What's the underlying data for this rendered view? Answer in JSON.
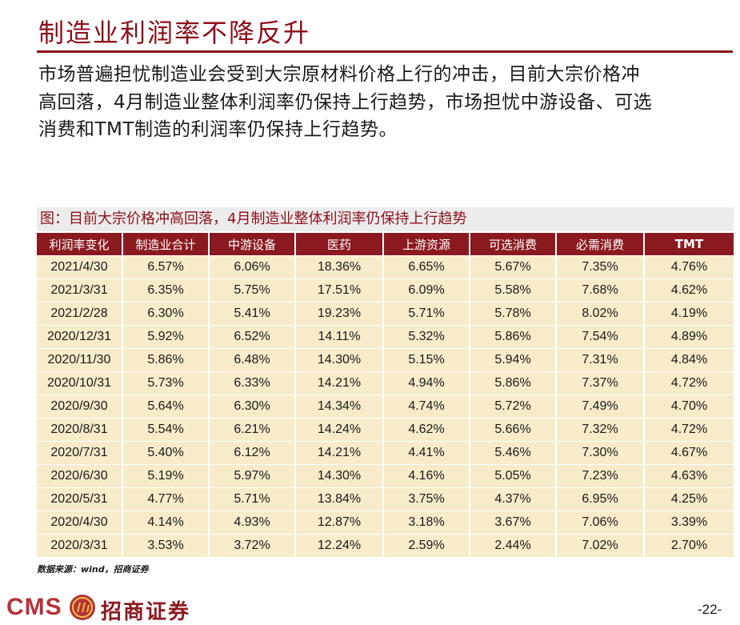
{
  "slide_title": "制造业利润率不降反升",
  "intro_lines": [
    "市场普遍担忧制造业会受到大宗原材料价格上行的冲击，目前大宗价格冲",
    "高回落，4月制造业整体利润率仍保持上行趋势，市场担忧中游设备、可选",
    "消费和TMT制造的利润率仍保持上行趋势。"
  ],
  "figure_caption": "图：目前大宗价格冲高回落，4月制造业整体利润率仍保持上行趋势",
  "table": {
    "headers": [
      "利润率变化",
      "制造业合计",
      "中游设备",
      "医药",
      "上游资源",
      "可选消费",
      "必需消费",
      "TMT"
    ],
    "rows": [
      [
        "2021/4/30",
        "6.57%",
        "6.06%",
        "18.36%",
        "6.65%",
        "5.67%",
        "7.35%",
        "4.76%"
      ],
      [
        "2021/3/31",
        "6.35%",
        "5.75%",
        "17.51%",
        "6.09%",
        "5.58%",
        "7.68%",
        "4.62%"
      ],
      [
        "2021/2/28",
        "6.30%",
        "5.41%",
        "19.23%",
        "5.71%",
        "5.78%",
        "8.02%",
        "4.19%"
      ],
      [
        "2020/12/31",
        "5.92%",
        "6.52%",
        "14.11%",
        "5.32%",
        "5.86%",
        "7.54%",
        "4.89%"
      ],
      [
        "2020/11/30",
        "5.86%",
        "6.48%",
        "14.30%",
        "5.15%",
        "5.94%",
        "7.31%",
        "4.84%"
      ],
      [
        "2020/10/31",
        "5.73%",
        "6.33%",
        "14.21%",
        "4.94%",
        "5.86%",
        "7.37%",
        "4.72%"
      ],
      [
        "2020/9/30",
        "5.64%",
        "6.30%",
        "14.34%",
        "4.74%",
        "5.72%",
        "7.49%",
        "4.70%"
      ],
      [
        "2020/8/31",
        "5.54%",
        "6.21%",
        "14.24%",
        "4.62%",
        "5.66%",
        "7.32%",
        "4.72%"
      ],
      [
        "2020/7/31",
        "5.40%",
        "6.12%",
        "14.21%",
        "4.41%",
        "5.46%",
        "7.30%",
        "4.67%"
      ],
      [
        "2020/6/30",
        "5.19%",
        "5.97%",
        "14.30%",
        "4.16%",
        "5.05%",
        "7.23%",
        "4.63%"
      ],
      [
        "2020/5/31",
        "4.77%",
        "5.71%",
        "13.84%",
        "3.75%",
        "4.37%",
        "6.95%",
        "4.25%"
      ],
      [
        "2020/4/30",
        "4.14%",
        "4.93%",
        "12.87%",
        "3.18%",
        "3.67%",
        "7.06%",
        "3.39%"
      ],
      [
        "2020/3/31",
        "3.53%",
        "3.72%",
        "12.24%",
        "2.59%",
        "2.44%",
        "7.02%",
        "2.70%"
      ]
    ]
  },
  "source_note": "数据来源：wind，招商证券",
  "footer": {
    "logo_text": "CMS",
    "logo_mark_icon": "cms-seal-icon",
    "brand_name": "招商证券",
    "page_number": "-22-"
  },
  "colors": {
    "accent": "#8b0f1a",
    "header_bg": "#8b1a20",
    "row_bg": "#f7ebc9",
    "caption_bg": "#ececec"
  }
}
